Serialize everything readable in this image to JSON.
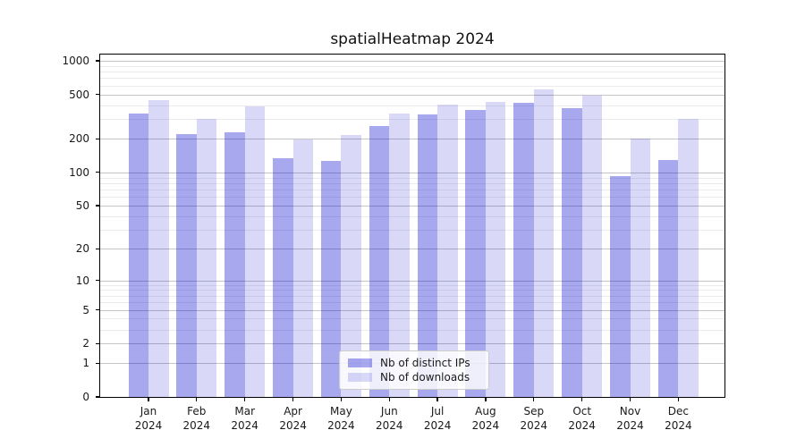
{
  "chart_data": {
    "type": "bar",
    "title": "spatialHeatmap 2024",
    "categories": [
      {
        "month": "Jan",
        "year": "2024"
      },
      {
        "month": "Feb",
        "year": "2024"
      },
      {
        "month": "Mar",
        "year": "2024"
      },
      {
        "month": "Apr",
        "year": "2024"
      },
      {
        "month": "May",
        "year": "2024"
      },
      {
        "month": "Jun",
        "year": "2024"
      },
      {
        "month": "Jul",
        "year": "2024"
      },
      {
        "month": "Aug",
        "year": "2024"
      },
      {
        "month": "Sep",
        "year": "2024"
      },
      {
        "month": "Oct",
        "year": "2024"
      },
      {
        "month": "Nov",
        "year": "2024"
      },
      {
        "month": "Dec",
        "year": "2024"
      }
    ],
    "series": [
      {
        "name": "Nb of distinct IPs",
        "color_key": "bar_dark",
        "values": [
          335,
          220,
          230,
          135,
          128,
          260,
          330,
          365,
          420,
          375,
          92,
          130
        ]
      },
      {
        "name": "Nb of downloads",
        "color_key": "bar_light",
        "values": [
          445,
          305,
          390,
          197,
          215,
          338,
          405,
          432,
          555,
          490,
          200,
          300
        ]
      }
    ],
    "yscale": "log10(1+x)",
    "ylim": [
      0,
      1137
    ],
    "yticks_major": [
      1000,
      500,
      200,
      100,
      50,
      20,
      10,
      5,
      2,
      1,
      0
    ],
    "yticks_minor": [
      900,
      800,
      700,
      600,
      400,
      300,
      90,
      80,
      70,
      60,
      40,
      30,
      9,
      8,
      7,
      6,
      4,
      3
    ],
    "grid": true,
    "legend_position": "lower center"
  },
  "style": {
    "bar_dark": "rgba(0,0,204,0.34)",
    "bar_light": "rgba(0,0,204,0.15)",
    "grid_major": "#c4c4c8",
    "grid_minor": "#ebebee",
    "axis_color": "#000000",
    "text_color": "#1a1a1a"
  }
}
